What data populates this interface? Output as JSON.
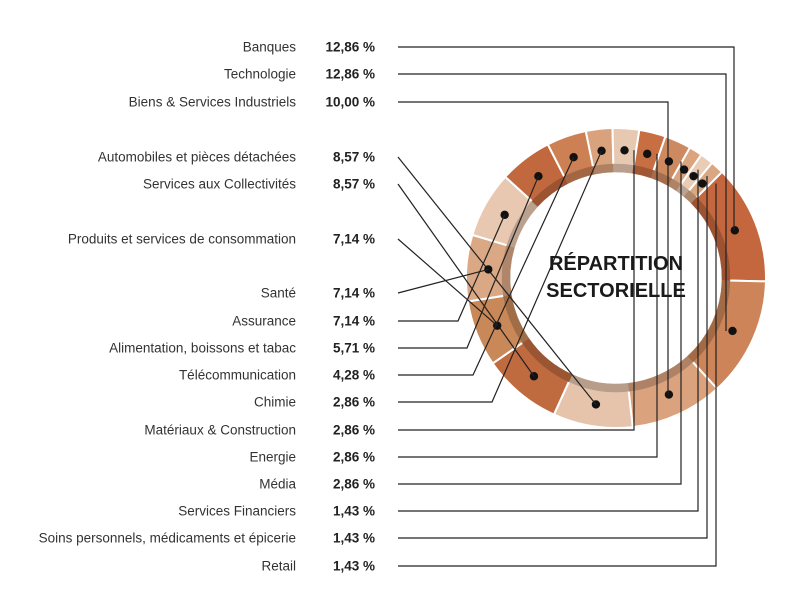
{
  "chart_data": {
    "type": "pie",
    "title_lines": [
      "RÉPARTITION",
      "SECTORIELLE"
    ],
    "categories": [
      "Banques",
      "Technologie",
      "Biens & Services Industriels",
      "Automobiles et pièces détachées",
      "Services aux Collectivités",
      "Produits et services de consommation",
      "Santé",
      "Assurance",
      "Alimentation, boissons et tabac",
      "Télécommunication",
      "Chimie",
      "Matériaux & Construction",
      "Energie",
      "Média",
      "Services Financiers",
      "Soins personnels, médicaments et épicerie",
      "Retail"
    ],
    "values": [
      12.86,
      12.86,
      10.0,
      8.57,
      8.57,
      7.14,
      7.14,
      7.14,
      5.71,
      4.28,
      2.86,
      2.86,
      2.86,
      2.86,
      1.43,
      1.43,
      1.43
    ],
    "value_labels": [
      "12,86 %",
      "12,86 %",
      "10,00 %",
      "8,57 %",
      "8,57 %",
      "7,14 %",
      "7,14 %",
      "7,14 %",
      "5,71 %",
      "4,28 %",
      "2,86 %",
      "2,86 %",
      "2,86 %",
      "2,86 %",
      "1,43 %",
      "1,43 %",
      "1,43 %"
    ],
    "colors": [
      "#c4673f",
      "#cc8458",
      "#dba27e",
      "#e6c4ac",
      "#c06a40",
      "#c98858",
      "#dba885",
      "#e8c8b0",
      "#c2683e",
      "#cc8054",
      "#d9a17c",
      "#e7c8b1",
      "#c76e43",
      "#cd8a60",
      "#dba47f",
      "#e9ccb6",
      "#d9a883"
    ],
    "connector_color": "#222222",
    "legend": "left"
  }
}
